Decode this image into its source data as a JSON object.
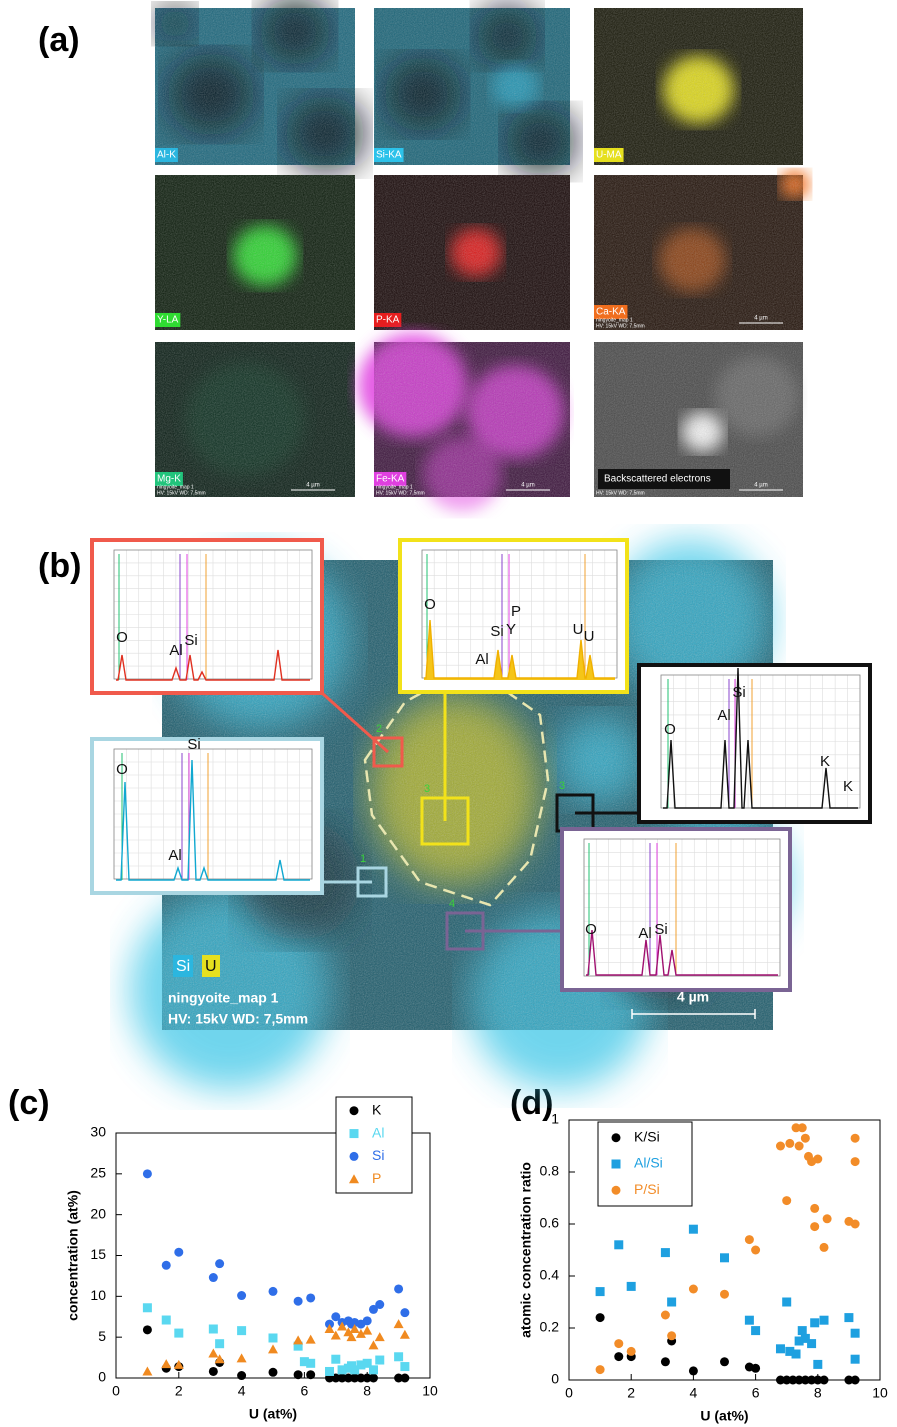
{
  "panel_a": {
    "label": "(a)",
    "tiles": [
      {
        "label": "Al-K",
        "color": "#2bb6df"
      },
      {
        "label": "Si-KA",
        "color": "#2cc2ea"
      },
      {
        "label": "U-MA",
        "color": "#e6e01e"
      },
      {
        "label": "Y-LA",
        "color": "#2fdc32"
      },
      {
        "label": "P-KA",
        "color": "#e61e1e"
      },
      {
        "label": "Ca-KA",
        "color": "#f06e1e",
        "info": [
          "ningyoite_map 1",
          "HV: 15kV  WD: 7,5mm"
        ],
        "scale": "4 µm"
      },
      {
        "label": "Mg-K",
        "color": "#22c47c",
        "info": [
          "ningyoite_map 1",
          "HV: 15kV  WD: 7,5mm"
        ],
        "scale": "4 µm"
      },
      {
        "label": "Fe-KA",
        "color": "#e040e0",
        "info": [
          "ningyoite_map 1",
          "HV: 15kV  WD: 7,5mm"
        ],
        "scale": "4 µm"
      },
      {
        "label": "Backscattered electrons",
        "color": "#9c9c9c",
        "info": [
          "HV: 15kV  WD: 7,5mm"
        ],
        "scale": "4 µm"
      }
    ]
  },
  "panel_b": {
    "label": "(b)",
    "legend": [
      "Si",
      "U"
    ],
    "info": [
      "ningyoite_map 1",
      "HV: 15kV  WD: 7,5mm"
    ],
    "scale": "4 µm",
    "insets": [
      {
        "color": "#f05a4c",
        "spot": "2",
        "peaks": [
          "O",
          "Al",
          "Si"
        ]
      },
      {
        "color": "#f2e21a",
        "spot": "3",
        "peaks": [
          "O",
          "Si",
          "Y",
          "P",
          "Al",
          "U",
          "U"
        ]
      },
      {
        "color": "#111111",
        "spot": "3",
        "peaks": [
          "O",
          "Al",
          "Si",
          "K",
          "K"
        ]
      },
      {
        "color": "#a9d6e2",
        "spot": "1",
        "peaks": [
          "O",
          "Si",
          "Al"
        ]
      },
      {
        "color": "#7a6494",
        "spot": "4",
        "peaks": [
          "O",
          "Al",
          "Si"
        ]
      }
    ]
  },
  "panel_c_label": "(c)",
  "panel_d_label": "(d)",
  "chart_data": [
    {
      "type": "scatter",
      "x_label": "U (at%)",
      "y_label": "concentration (at%)",
      "xlim": [
        0,
        10
      ],
      "ylim": [
        0,
        30
      ],
      "xticks": [
        0,
        2,
        4,
        6,
        8,
        10
      ],
      "yticks": [
        0,
        5,
        10,
        15,
        20,
        25,
        30
      ],
      "legend": "upper right",
      "series": [
        {
          "name": "K",
          "color": "#000000",
          "marker": "circle",
          "x": [
            1.0,
            1.6,
            2.0,
            3.1,
            3.3,
            4.0,
            5.0,
            5.8,
            6.2,
            6.8,
            7.0,
            7.2,
            7.4,
            7.6,
            7.8,
            8.0,
            8.2,
            9.0,
            9.2
          ],
          "values": [
            5.9,
            1.2,
            1.4,
            0.8,
            1.9,
            0.3,
            0.7,
            0.4,
            0.4,
            0,
            0,
            0,
            0,
            0,
            0,
            0,
            0,
            0,
            0
          ]
        },
        {
          "name": "Al",
          "color": "#5ad8f0",
          "marker": "square",
          "x": [
            1.0,
            1.6,
            2.0,
            3.1,
            3.3,
            4.0,
            5.0,
            5.8,
            6.0,
            6.2,
            6.8,
            7.0,
            7.2,
            7.4,
            7.5,
            7.6,
            7.8,
            8.0,
            8.2,
            8.4,
            9.0,
            9.2
          ],
          "values": [
            8.6,
            7.1,
            5.5,
            6.0,
            4.2,
            5.8,
            4.9,
            3.9,
            2.0,
            1.8,
            0.8,
            2.3,
            1.0,
            1.2,
            1.5,
            1.0,
            1.6,
            1.8,
            1.0,
            2.2,
            2.6,
            1.4
          ]
        },
        {
          "name": "Si",
          "color": "#2f6ee8",
          "marker": "circle",
          "x": [
            1.0,
            1.6,
            2.0,
            3.1,
            3.3,
            4.0,
            5.0,
            5.8,
            6.2,
            6.8,
            7.0,
            7.2,
            7.4,
            7.5,
            7.6,
            7.8,
            8.0,
            8.2,
            8.4,
            9.0,
            9.2
          ],
          "values": [
            25,
            13.8,
            15.4,
            12.3,
            14.0,
            10.1,
            10.6,
            9.4,
            9.8,
            6.6,
            7.5,
            6.8,
            7.0,
            6.6,
            6.8,
            6.6,
            7.0,
            8.4,
            9.0,
            10.9,
            8.0
          ]
        },
        {
          "name": "P",
          "color": "#f08a20",
          "marker": "triangle",
          "x": [
            1.0,
            1.6,
            2.0,
            3.1,
            3.3,
            4.0,
            5.0,
            5.8,
            6.2,
            6.8,
            7.0,
            7.2,
            7.4,
            7.5,
            7.6,
            7.8,
            8.0,
            8.2,
            8.4,
            9.0,
            9.2
          ],
          "values": [
            0.8,
            1.7,
            1.6,
            3.0,
            2.3,
            2.4,
            3.5,
            4.6,
            4.7,
            6.0,
            5.2,
            6.3,
            5.6,
            5.0,
            6.0,
            5.4,
            5.8,
            4.0,
            5.0,
            6.6,
            5.3
          ]
        }
      ]
    },
    {
      "type": "scatter",
      "x_label": "U (at%)",
      "y_label": "atomic concentration ratio",
      "xlim": [
        0,
        10
      ],
      "ylim": [
        0,
        1
      ],
      "xticks": [
        0,
        2,
        4,
        6,
        8,
        10
      ],
      "yticks": [
        0,
        0.2,
        0.4,
        0.6,
        0.8,
        1
      ],
      "legend": "upper left",
      "series": [
        {
          "name": "K/Si",
          "color": "#000000",
          "marker": "circle",
          "x": [
            1.0,
            1.6,
            2.0,
            3.1,
            3.3,
            4.0,
            5.0,
            5.8,
            6.0,
            6.8,
            7.0,
            7.2,
            7.4,
            7.6,
            7.8,
            8.0,
            8.2,
            9.0,
            9.2
          ],
          "values": [
            0.24,
            0.09,
            0.09,
            0.07,
            0.15,
            0.035,
            0.07,
            0.05,
            0.045,
            0,
            0,
            0,
            0,
            0,
            0,
            0,
            0,
            0,
            0
          ]
        },
        {
          "name": "Al/Si",
          "color": "#1ea0e0",
          "marker": "square",
          "x": [
            1.0,
            1.6,
            2.0,
            3.1,
            3.3,
            4.0,
            5.0,
            5.8,
            6.0,
            6.8,
            7.0,
            7.1,
            7.3,
            7.4,
            7.5,
            7.6,
            7.8,
            7.9,
            8.0,
            8.2,
            9.0,
            9.2,
            9.2
          ],
          "values": [
            0.34,
            0.52,
            0.36,
            0.49,
            0.3,
            0.58,
            0.47,
            0.23,
            0.19,
            0.12,
            0.3,
            0.11,
            0.1,
            0.15,
            0.19,
            0.16,
            0.14,
            0.22,
            0.06,
            0.23,
            0.24,
            0.18,
            0.08
          ]
        },
        {
          "name": "P/Si",
          "color": "#f28c28",
          "marker": "circle",
          "x": [
            1.0,
            1.6,
            2.0,
            3.1,
            3.3,
            4.0,
            5.0,
            5.8,
            6.0,
            6.8,
            7.0,
            7.1,
            7.3,
            7.4,
            7.5,
            7.6,
            7.7,
            7.8,
            7.9,
            7.9,
            8.0,
            8.2,
            8.3,
            9.0,
            9.2,
            9.2,
            9.2
          ],
          "values": [
            0.04,
            0.14,
            0.11,
            0.25,
            0.17,
            0.35,
            0.33,
            0.54,
            0.5,
            0.9,
            0.69,
            0.91,
            0.97,
            0.9,
            0.97,
            0.93,
            0.86,
            0.84,
            0.66,
            0.59,
            0.85,
            0.51,
            0.62,
            0.61,
            0.93,
            0.84,
            0.6
          ]
        }
      ]
    }
  ]
}
